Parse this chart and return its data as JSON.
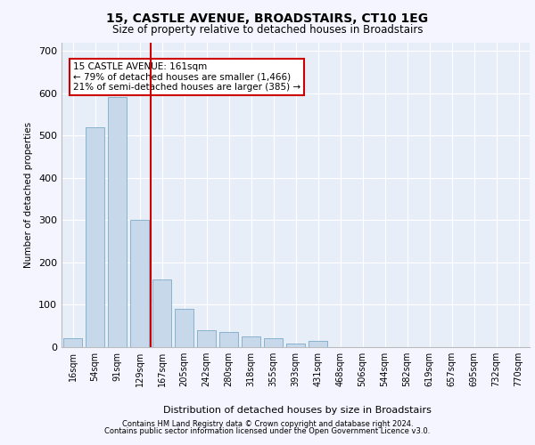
{
  "title": "15, CASTLE AVENUE, BROADSTAIRS, CT10 1EG",
  "subtitle": "Size of property relative to detached houses in Broadstairs",
  "xlabel": "Distribution of detached houses by size in Broadstairs",
  "ylabel": "Number of detached properties",
  "bar_color": "#c8d8eb",
  "bar_edge_color": "#7aaac8",
  "vline_color": "#cc0000",
  "vline_pos": 4,
  "annotation_text": "15 CASTLE AVENUE: 161sqm\n← 79% of detached houses are smaller (1,466)\n21% of semi-detached houses are larger (385) →",
  "categories": [
    "16sqm",
    "54sqm",
    "91sqm",
    "129sqm",
    "167sqm",
    "205sqm",
    "242sqm",
    "280sqm",
    "318sqm",
    "355sqm",
    "393sqm",
    "431sqm",
    "468sqm",
    "506sqm",
    "544sqm",
    "582sqm",
    "619sqm",
    "657sqm",
    "695sqm",
    "732sqm",
    "770sqm"
  ],
  "values": [
    20,
    520,
    590,
    300,
    160,
    90,
    40,
    35,
    25,
    20,
    8,
    15,
    0,
    0,
    0,
    0,
    0,
    0,
    0,
    0,
    0
  ],
  "ylim": [
    0,
    720
  ],
  "yticks": [
    0,
    100,
    200,
    300,
    400,
    500,
    600,
    700
  ],
  "footer_line1": "Contains HM Land Registry data © Crown copyright and database right 2024.",
  "footer_line2": "Contains public sector information licensed under the Open Government Licence v3.0.",
  "plot_bg_color": "#e8eef8",
  "grid_color": "#ffffff",
  "fig_bg_color": "#f5f5ff"
}
